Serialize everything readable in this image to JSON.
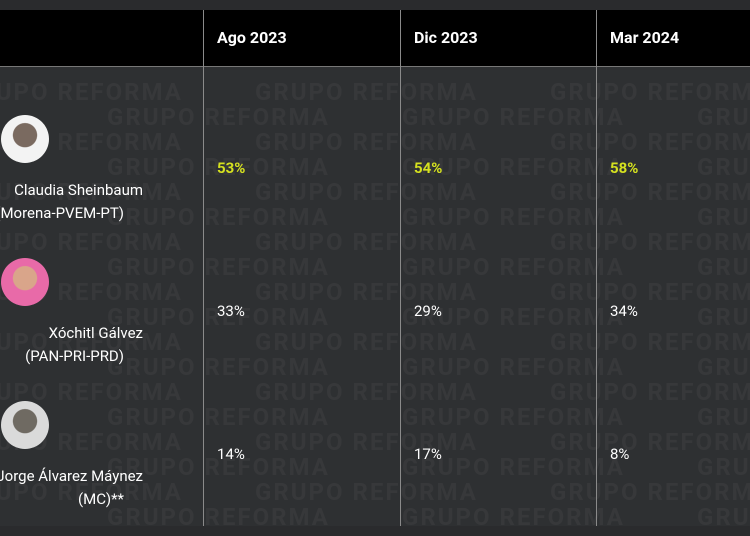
{
  "watermark": "GRUPO REFORMA",
  "header": {
    "columns": [
      "Ago 2023",
      "Dic 2023",
      "Mar 2024"
    ]
  },
  "table": {
    "rows": [
      {
        "name": "Claudia Sheinbaum",
        "party": "(Morena-PVEM-PT)",
        "values": [
          "53%",
          "54%",
          "58%"
        ],
        "highlight": true
      },
      {
        "name": "Xóchitl Gálvez",
        "party": "(PAN-PRI-PRD)",
        "values": [
          "33%",
          "29%",
          "34%"
        ],
        "highlight": false
      },
      {
        "name": "Jorge Álvarez Máynez",
        "party": "(MC)**",
        "values": [
          "14%",
          "17%",
          "8%"
        ],
        "highlight": false
      }
    ]
  }
}
